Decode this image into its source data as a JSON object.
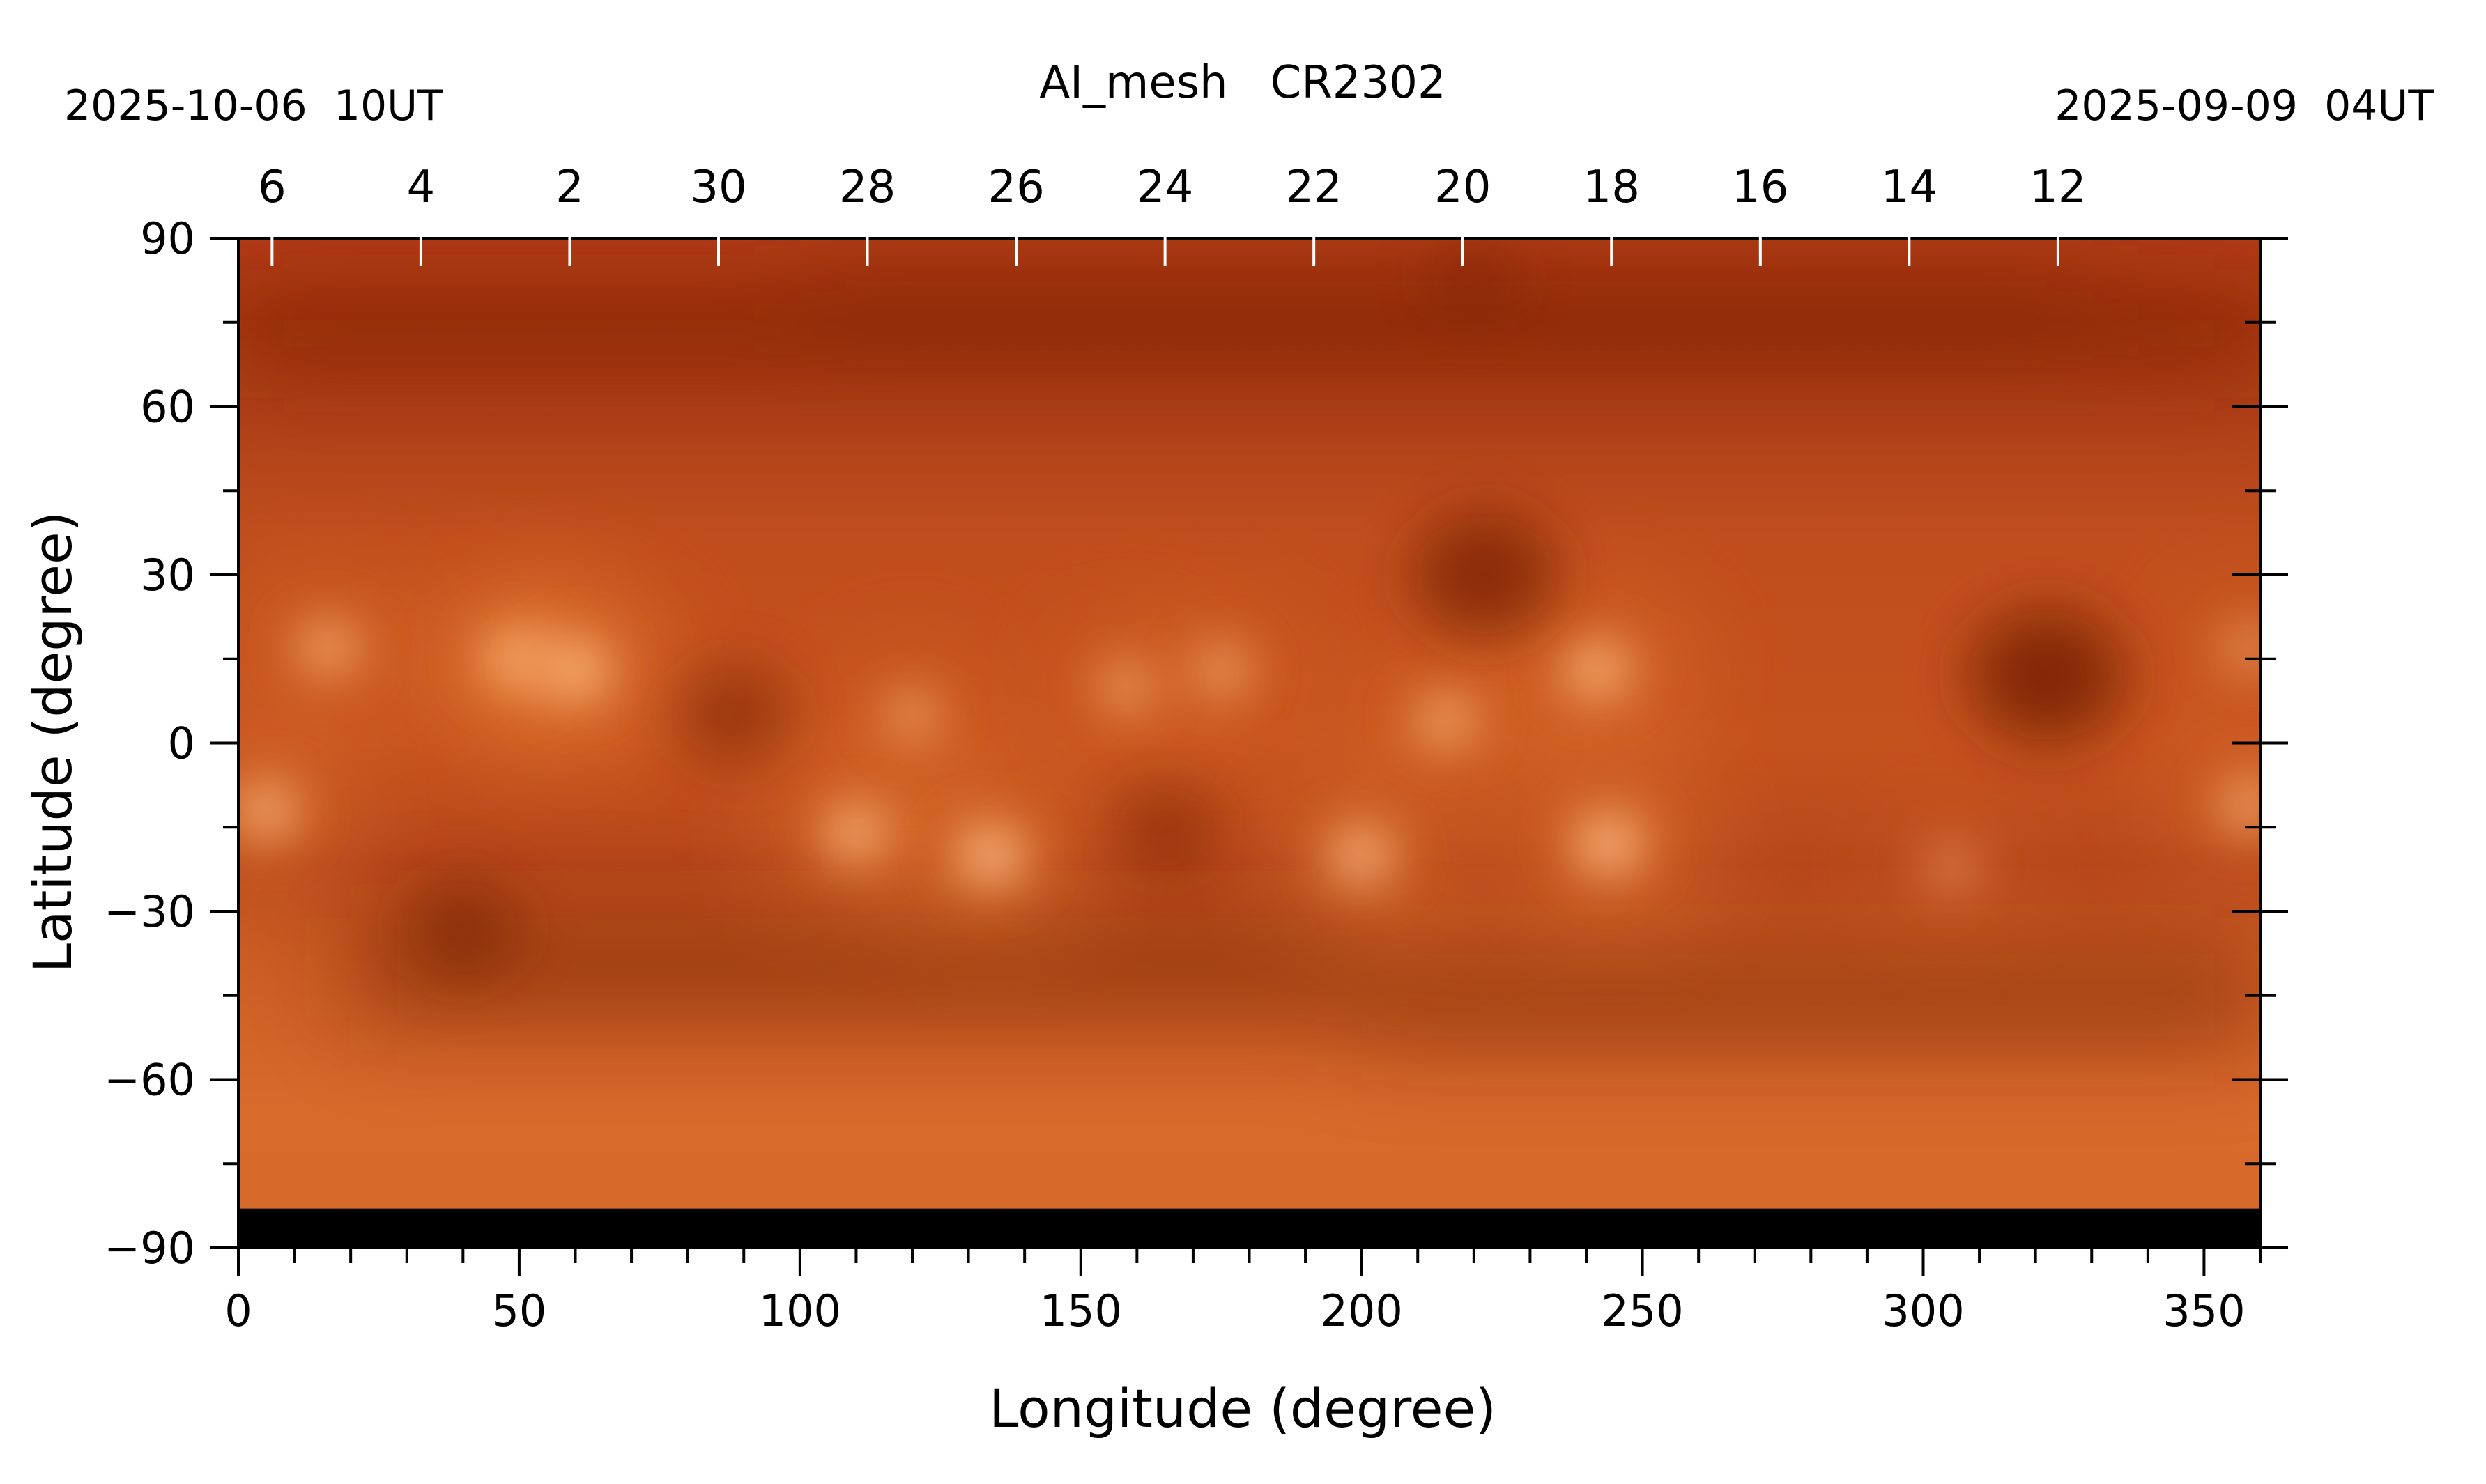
{
  "chart_data": {
    "type": "heatmap",
    "title": "AI_mesh   CR2302",
    "date_left": "2025-10-06  10UT",
    "date_right": "2025-09-09  04UT",
    "xlabel": "Longitude (degree)",
    "ylabel": "Latitude (degree)",
    "xlim": [
      0,
      360
    ],
    "ylim": [
      -90,
      90
    ],
    "x_ticks": [
      0,
      50,
      100,
      150,
      200,
      250,
      300,
      350
    ],
    "y_ticks": [
      90,
      60,
      30,
      0,
      -30,
      -60,
      -90
    ],
    "y_tick_labels": [
      "90",
      "60",
      "30",
      "0",
      "−30",
      "−60",
      "−90"
    ],
    "top_ticks": [
      {
        "label": "6",
        "lon": 6
      },
      {
        "label": "4",
        "lon": 32.5
      },
      {
        "label": "2",
        "lon": 59
      },
      {
        "label": "30",
        "lon": 85.5
      },
      {
        "label": "28",
        "lon": 112
      },
      {
        "label": "26",
        "lon": 138.5
      },
      {
        "label": "24",
        "lon": 165
      },
      {
        "label": "22",
        "lon": 191.5
      },
      {
        "label": "20",
        "lon": 218
      },
      {
        "label": "18",
        "lon": 244.5
      },
      {
        "label": "16",
        "lon": 271
      },
      {
        "label": "14",
        "lon": 297.5
      },
      {
        "label": "12",
        "lon": 324
      }
    ],
    "colormap": [
      "#000000",
      "#6e1a05",
      "#a8360e",
      "#d2571c",
      "#f08a3c",
      "#ffc080",
      "#fff2dc"
    ],
    "background_color": "#b5441a",
    "no_data_below_lat": -83,
    "features": [
      {
        "kind": "active-region",
        "lon": 50,
        "lat": 15,
        "intensity": 0.95
      },
      {
        "kind": "active-region",
        "lon": 60,
        "lat": 13,
        "intensity": 0.9
      },
      {
        "kind": "active-region",
        "lon": 16,
        "lat": 17,
        "intensity": 0.7
      },
      {
        "kind": "active-region",
        "lon": 5,
        "lat": -12,
        "intensity": 0.8
      },
      {
        "kind": "active-region",
        "lon": 110,
        "lat": -16,
        "intensity": 0.85
      },
      {
        "kind": "active-region",
        "lon": 134,
        "lat": -20,
        "intensity": 0.95
      },
      {
        "kind": "active-region",
        "lon": 120,
        "lat": 5,
        "intensity": 0.55
      },
      {
        "kind": "active-region",
        "lon": 175,
        "lat": 13,
        "intensity": 0.6
      },
      {
        "kind": "active-region",
        "lon": 158,
        "lat": 10,
        "intensity": 0.55
      },
      {
        "kind": "active-region",
        "lon": 200,
        "lat": -20,
        "intensity": 0.85
      },
      {
        "kind": "active-region",
        "lon": 215,
        "lat": 4,
        "intensity": 0.7
      },
      {
        "kind": "active-region",
        "lon": 242,
        "lat": 13,
        "intensity": 0.85
      },
      {
        "kind": "active-region",
        "lon": 244,
        "lat": -18,
        "intensity": 0.95
      },
      {
        "kind": "active-region",
        "lon": 358,
        "lat": -11,
        "intensity": 0.7
      },
      {
        "kind": "active-region",
        "lon": 358,
        "lat": 17,
        "intensity": 0.5
      },
      {
        "kind": "active-region",
        "lon": 305,
        "lat": -22,
        "intensity": 0.4
      },
      {
        "kind": "coronal-hole",
        "lon": 222,
        "lat": 30,
        "intensity": 0.8
      },
      {
        "kind": "coronal-hole",
        "lon": 322,
        "lat": 12,
        "intensity": 0.9
      },
      {
        "kind": "coronal-hole",
        "lon": 88,
        "lat": 5,
        "intensity": 0.55
      },
      {
        "kind": "coronal-hole",
        "lon": 40,
        "lat": -33,
        "intensity": 0.55
      },
      {
        "kind": "coronal-hole",
        "lon": 165,
        "lat": -15,
        "intensity": 0.45
      },
      {
        "kind": "coronal-hole",
        "lon": 220,
        "lat": 83,
        "intensity": 0.35
      }
    ]
  }
}
